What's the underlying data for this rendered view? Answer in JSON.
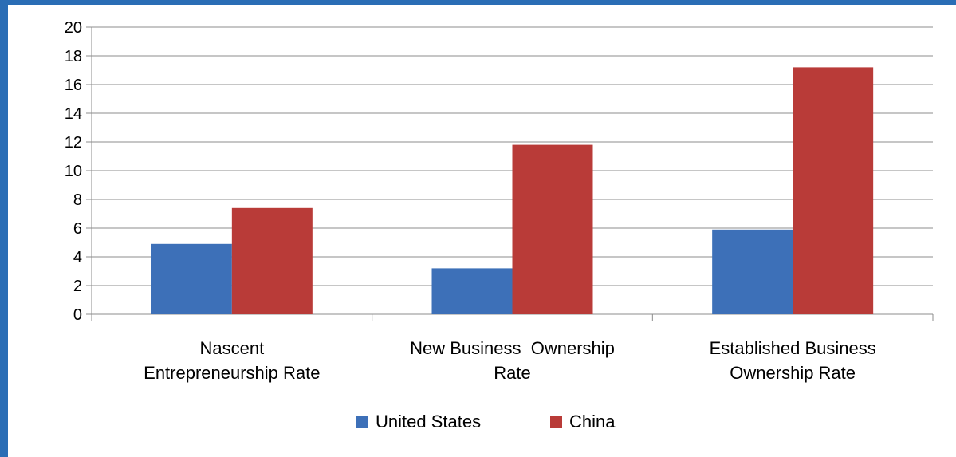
{
  "chart_data": {
    "type": "bar",
    "categories": [
      [
        "Nascent",
        "Entrepreneurship Rate"
      ],
      [
        "New Business  Ownership",
        "Rate"
      ],
      [
        "Established Business",
        "Ownership Rate"
      ]
    ],
    "series": [
      {
        "name": "United States",
        "values": [
          4.9,
          3.2,
          5.9
        ],
        "color": "#3d70b8"
      },
      {
        "name": "China",
        "values": [
          7.4,
          11.8,
          17.2
        ],
        "color": "#b93b38"
      }
    ],
    "ylim": [
      0,
      20
    ],
    "yticks": [
      "0",
      "2",
      "4",
      "6",
      "8",
      "10",
      "12",
      "14",
      "16",
      "18",
      "20"
    ],
    "grid": true,
    "legend_position": "bottom"
  }
}
